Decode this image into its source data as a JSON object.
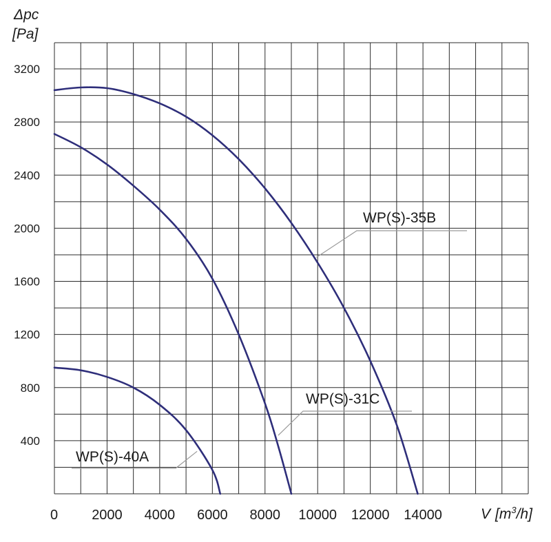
{
  "chart_data": {
    "type": "line",
    "title": "",
    "ylabel": "Δpc",
    "ylabel_unit": "[Pa]",
    "xlabel": "V",
    "xlabel_unit": "[m3/h]",
    "xlim": [
      0,
      18000
    ],
    "ylim": [
      0,
      3200
    ],
    "x_ticks": [
      "0",
      "2000",
      "4000",
      "6000",
      "8000",
      "10000",
      "12000",
      "14000"
    ],
    "y_ticks": [
      "400",
      "800",
      "1200",
      "1600",
      "2000",
      "2400",
      "2800",
      "3200"
    ],
    "grid": true,
    "line_color": "#2e2e7a",
    "series": [
      {
        "name": "WP(S)-35B",
        "x": [
          0,
          1000,
          2000,
          3000,
          4000,
          5000,
          6000,
          7000,
          8000,
          9000,
          10000,
          11000,
          12000,
          13000,
          13800
        ],
        "y": [
          3040,
          3060,
          3055,
          3010,
          2940,
          2840,
          2700,
          2520,
          2300,
          2040,
          1740,
          1400,
          1000,
          520,
          0
        ]
      },
      {
        "name": "WP(S)-31C",
        "x": [
          0,
          1000,
          2000,
          3000,
          4000,
          5000,
          6000,
          7000,
          8000,
          8500,
          9000
        ],
        "y": [
          2710,
          2610,
          2480,
          2320,
          2140,
          1920,
          1620,
          1200,
          680,
          360,
          0
        ]
      },
      {
        "name": "WP(S)-40A",
        "x": [
          0,
          1000,
          2000,
          3000,
          4000,
          5000,
          6000,
          6300
        ],
        "y": [
          950,
          930,
          880,
          800,
          670,
          480,
          180,
          0
        ]
      }
    ]
  }
}
